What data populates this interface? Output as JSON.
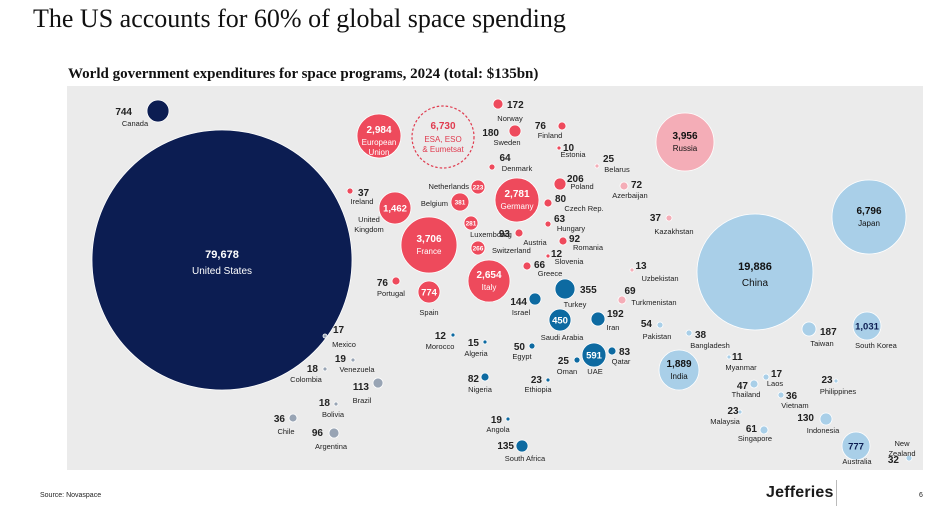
{
  "page": {
    "headline": "The US accounts for 60% of global space spending",
    "source": "Source: Novaspace",
    "brand": "Jefferies",
    "page_number": "6"
  },
  "colors": {
    "us": "#0c1d52",
    "europe": "#ee4a5c",
    "russia": "#f4adb7",
    "asia": "#a9cfe8",
    "mideast_africa": "#0d6aa1",
    "latam": "#98a4b4",
    "esa_outline": "#e03a4e",
    "panel": "#ebebeb"
  },
  "chart_data": {
    "type": "bubble",
    "title": "World government expenditures for space programs, 2024 (total: $135bn)",
    "groups": [
      "us",
      "europe",
      "russia",
      "asia",
      "mideast_africa",
      "latam"
    ],
    "points": [
      {
        "name": "United States",
        "value": "79,678",
        "group": "us"
      },
      {
        "name": "Canada",
        "value": "744",
        "group": "us"
      },
      {
        "name": "European Union",
        "value": "2,984",
        "group": "europe"
      },
      {
        "name": "ESA, ESO & Eumetsat",
        "value": "6,730",
        "group": "europe"
      },
      {
        "name": "Norway",
        "value": "172",
        "group": "europe"
      },
      {
        "name": "Sweden",
        "value": "180",
        "group": "europe"
      },
      {
        "name": "Finland",
        "value": "76",
        "group": "europe"
      },
      {
        "name": "Estonia",
        "value": "10",
        "group": "europe"
      },
      {
        "name": "Denmark",
        "value": "64",
        "group": "europe"
      },
      {
        "name": "Netherlands",
        "value": "223",
        "group": "europe"
      },
      {
        "name": "Ireland",
        "value": "37",
        "group": "europe"
      },
      {
        "name": "United Kingdom",
        "value": "1,462",
        "group": "europe"
      },
      {
        "name": "Belgium",
        "value": "381",
        "group": "europe"
      },
      {
        "name": "Germany",
        "value": "2,781",
        "group": "europe"
      },
      {
        "name": "Poland",
        "value": "206",
        "group": "europe"
      },
      {
        "name": "Czech Rep.",
        "value": "80",
        "group": "europe"
      },
      {
        "name": "Hungary",
        "value": "63",
        "group": "europe"
      },
      {
        "name": "Luxembourg",
        "value": "281",
        "group": "europe"
      },
      {
        "name": "Austria",
        "value": "93",
        "group": "europe"
      },
      {
        "name": "Romania",
        "value": "92",
        "group": "europe"
      },
      {
        "name": "Switzerland",
        "value": "266",
        "group": "europe"
      },
      {
        "name": "Slovenia",
        "value": "12",
        "group": "europe"
      },
      {
        "name": "France",
        "value": "3,706",
        "group": "europe"
      },
      {
        "name": "Greece",
        "value": "66",
        "group": "europe"
      },
      {
        "name": "Italy",
        "value": "2,654",
        "group": "europe"
      },
      {
        "name": "Portugal",
        "value": "76",
        "group": "europe"
      },
      {
        "name": "Spain",
        "value": "774",
        "group": "europe"
      },
      {
        "name": "Belarus",
        "value": "25",
        "group": "russia"
      },
      {
        "name": "Azerbaijan",
        "value": "72",
        "group": "russia"
      },
      {
        "name": "Russia",
        "value": "3,956",
        "group": "russia"
      },
      {
        "name": "Kazakhstan",
        "value": "37",
        "group": "russia"
      },
      {
        "name": "Uzbekistan",
        "value": "13",
        "group": "russia"
      },
      {
        "name": "Turkmenistan",
        "value": "69",
        "group": "russia"
      },
      {
        "name": "China",
        "value": "19,886",
        "group": "asia"
      },
      {
        "name": "Japan",
        "value": "6,796",
        "group": "asia"
      },
      {
        "name": "Pakistan",
        "value": "54",
        "group": "asia"
      },
      {
        "name": "Bangladesh",
        "value": "38",
        "group": "asia"
      },
      {
        "name": "Taiwan",
        "value": "187",
        "group": "asia"
      },
      {
        "name": "South Korea",
        "value": "1,031",
        "group": "asia"
      },
      {
        "name": "India",
        "value": "1,889",
        "group": "asia"
      },
      {
        "name": "Myanmar",
        "value": "11",
        "group": "asia"
      },
      {
        "name": "Laos",
        "value": "17",
        "group": "asia"
      },
      {
        "name": "Thailand",
        "value": "47",
        "group": "asia"
      },
      {
        "name": "Vietnam",
        "value": "36",
        "group": "asia"
      },
      {
        "name": "Philippines",
        "value": "23",
        "group": "asia"
      },
      {
        "name": "Malaysia",
        "value": "23",
        "group": "asia"
      },
      {
        "name": "Singapore",
        "value": "61",
        "group": "asia"
      },
      {
        "name": "Indonesia",
        "value": "130",
        "group": "asia"
      },
      {
        "name": "Australia",
        "value": "777",
        "group": "asia"
      },
      {
        "name": "New Zealand",
        "value": "32",
        "group": "asia"
      },
      {
        "name": "Turkey",
        "value": "355",
        "group": "mideast_africa"
      },
      {
        "name": "Israel",
        "value": "144",
        "group": "mideast_africa"
      },
      {
        "name": "Saudi Arabia",
        "value": "450",
        "group": "mideast_africa"
      },
      {
        "name": "Iran",
        "value": "192",
        "group": "mideast_africa"
      },
      {
        "name": "Morocco",
        "value": "12",
        "group": "mideast_africa"
      },
      {
        "name": "Algeria",
        "value": "15",
        "group": "mideast_africa"
      },
      {
        "name": "Egypt",
        "value": "50",
        "group": "mideast_africa"
      },
      {
        "name": "Oman",
        "value": "25",
        "group": "mideast_africa"
      },
      {
        "name": "UAE",
        "value": "591",
        "group": "mideast_africa"
      },
      {
        "name": "Qatar",
        "value": "83",
        "group": "mideast_africa"
      },
      {
        "name": "Nigeria",
        "value": "82",
        "group": "mideast_africa"
      },
      {
        "name": "Ethiopia",
        "value": "23",
        "group": "mideast_africa"
      },
      {
        "name": "Angola",
        "value": "19",
        "group": "mideast_africa"
      },
      {
        "name": "South Africa",
        "value": "135",
        "group": "mideast_africa"
      },
      {
        "name": "Mexico",
        "value": "17",
        "group": "latam"
      },
      {
        "name": "Venezuela",
        "value": "19",
        "group": "latam"
      },
      {
        "name": "Colombia",
        "value": "18",
        "group": "latam"
      },
      {
        "name": "Brazil",
        "value": "113",
        "group": "latam"
      },
      {
        "name": "Bolivia",
        "value": "18",
        "group": "latam"
      },
      {
        "name": "Chile",
        "value": "36",
        "group": "latam"
      },
      {
        "name": "Argentina",
        "value": "96",
        "group": "latam"
      }
    ]
  }
}
